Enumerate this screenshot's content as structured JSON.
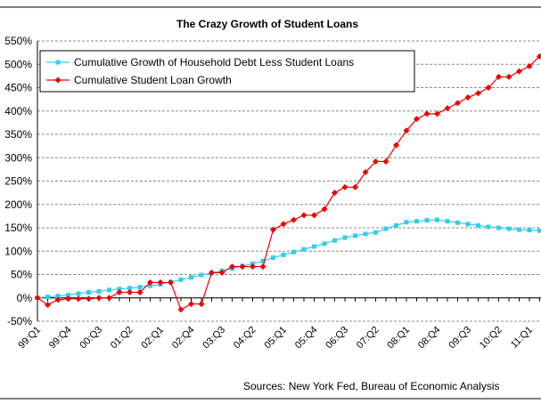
{
  "chart_data": {
    "type": "line",
    "title": "The Crazy Growth of Student Loans",
    "source": "Sources: New York Fed, Bureau of Economic Analysis",
    "categories": [
      "99:Q1",
      null,
      null,
      "99:Q4",
      null,
      null,
      "00:Q3",
      null,
      null,
      "01:Q2",
      null,
      null,
      "02:Q1",
      null,
      null,
      "02:Q4",
      null,
      null,
      "03:Q3",
      null,
      null,
      "04:Q2",
      null,
      null,
      "05:Q1",
      null,
      null,
      "05:Q4",
      null,
      null,
      "06:Q3",
      null,
      null,
      "07:Q2",
      null,
      null,
      "08:Q1",
      null,
      null,
      "08:Q4",
      null,
      null,
      "09:Q3",
      null,
      null,
      "10:Q2",
      null,
      null,
      "11:Q1",
      null
    ],
    "series": [
      {
        "name": "Cumulative Growth of Household Debt Less Student Loans",
        "color": "#33ccee",
        "marker": "square",
        "values": [
          0,
          2,
          4,
          6,
          9,
          12,
          14,
          17,
          19,
          21,
          23,
          26,
          29,
          34,
          39,
          44,
          49,
          53,
          58,
          63,
          68,
          73,
          79,
          86,
          92,
          98,
          104,
          110,
          116,
          123,
          129,
          133,
          137,
          140,
          148,
          155,
          162,
          164,
          166,
          167,
          164,
          161,
          158,
          155,
          152,
          150,
          148,
          146,
          145,
          144
        ]
      },
      {
        "name": "Cumulative Student Loan Growth",
        "color": "#ee0000",
        "marker": "diamond",
        "values": [
          0,
          -15,
          -4,
          -2,
          -2,
          -2,
          0,
          0,
          12,
          12,
          12,
          33,
          33,
          33,
          -25,
          -13,
          -13,
          54,
          54,
          67,
          67,
          67,
          67,
          146,
          158,
          167,
          177,
          177,
          190,
          225,
          237,
          237,
          269,
          292,
          292,
          327,
          358,
          383,
          394,
          394,
          406,
          417,
          429,
          438,
          450,
          473,
          473,
          485,
          496,
          517
        ]
      }
    ],
    "ylim": [
      -50,
      550
    ],
    "yticks": [
      {
        "value": -50,
        "label": "-50%"
      },
      {
        "value": 0,
        "label": "0%"
      },
      {
        "value": 50,
        "label": "50%"
      },
      {
        "value": 100,
        "label": "100%"
      },
      {
        "value": 150,
        "label": "150%"
      },
      {
        "value": 200,
        "label": "200%"
      },
      {
        "value": 250,
        "label": "250%"
      },
      {
        "value": 300,
        "label": "300%"
      },
      {
        "value": 350,
        "label": "350%"
      },
      {
        "value": 400,
        "label": "400%"
      },
      {
        "value": 450,
        "label": "450%"
      },
      {
        "value": 500,
        "label": "500%"
      },
      {
        "value": 550,
        "label": "550%"
      }
    ],
    "grid": true,
    "legend": "top-left"
  }
}
